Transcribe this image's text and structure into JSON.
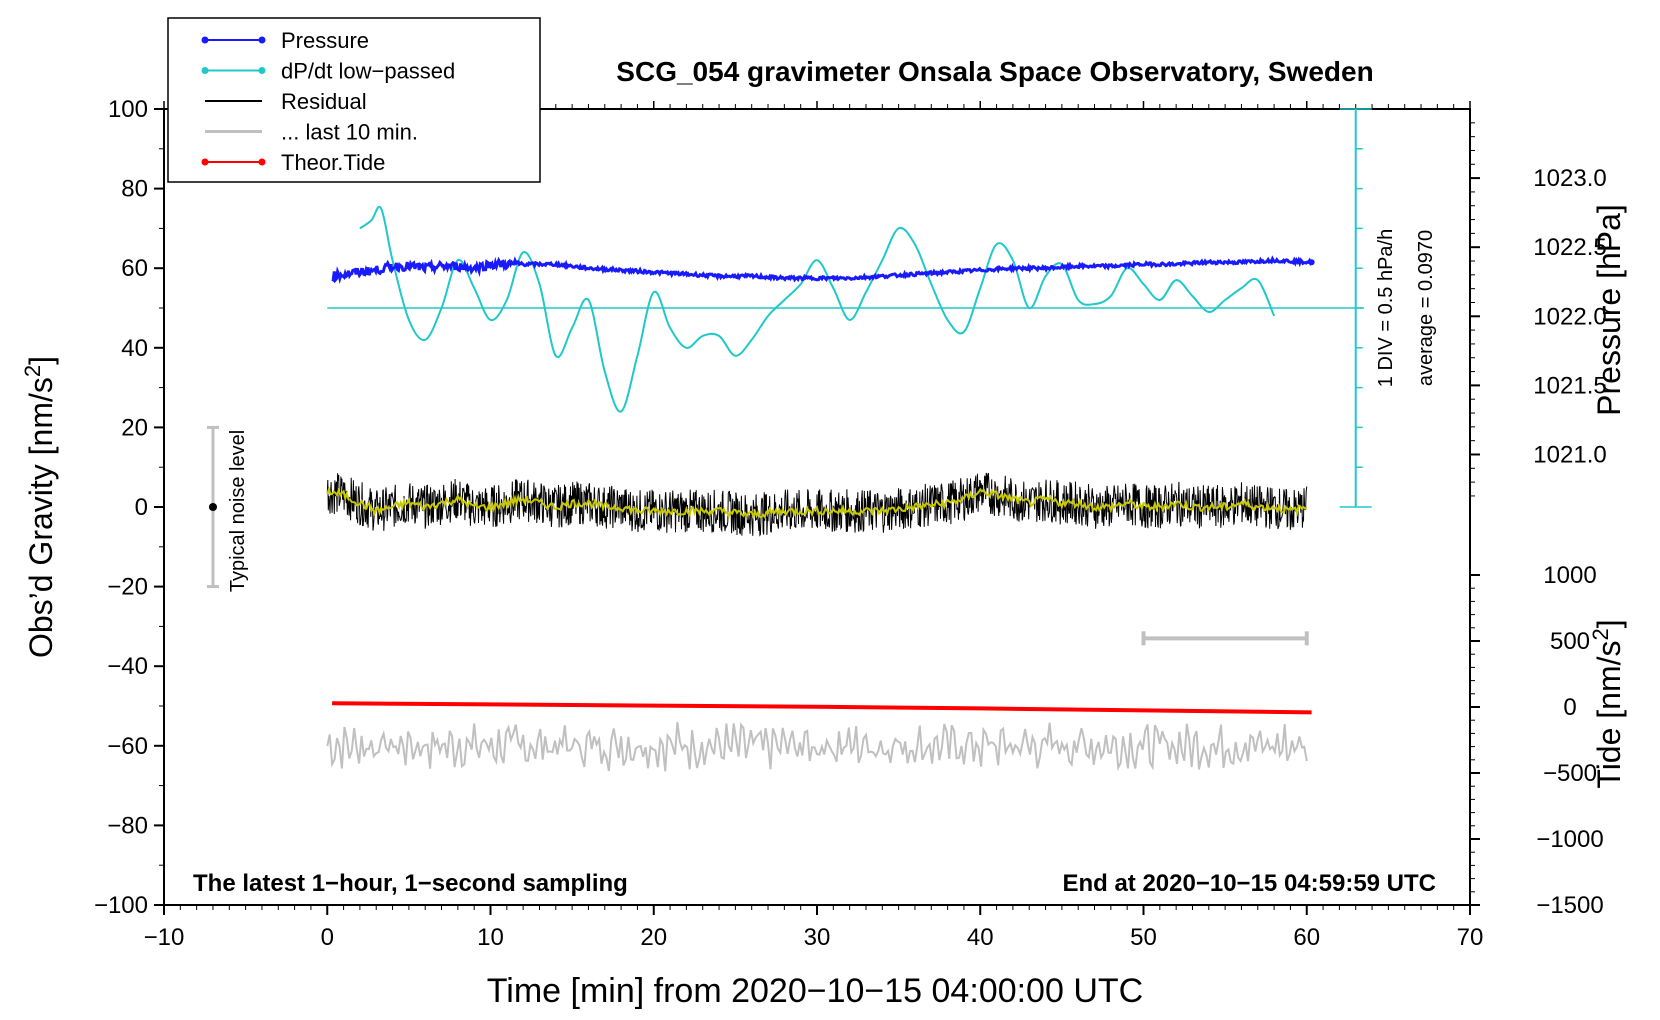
{
  "chart_data": {
    "type": "line",
    "title": "SCG_054 gravimeter Onsala Space Observatory, Sweden",
    "xlabel": "Time [min] from 2020−10−15 04:00:00 UTC",
    "ylabel_main": "Obs’d Gravity [nm/s",
    "ylabel_main_sup": "2",
    "ylabel_main_end": "]",
    "ylabel_pressure": "Pressure [hPa]",
    "ylabel_tide": "Tide [nm/s",
    "ylabel_tide_sup": "2",
    "ylabel_tide_end": "]",
    "xlim": [
      -10,
      70
    ],
    "ylim": [
      -100,
      100
    ],
    "x_ticks": [
      -10,
      0,
      10,
      20,
      30,
      40,
      50,
      60,
      70
    ],
    "x_tick_labels": [
      "−10",
      "0",
      "10",
      "20",
      "30",
      "40",
      "50",
      "60",
      "70"
    ],
    "y_ticks": [
      100,
      80,
      60,
      40,
      20,
      0,
      -20,
      -40,
      -60,
      -80,
      -100
    ],
    "y_tick_labels": [
      "100",
      "80",
      "60",
      "40",
      "20",
      "0",
      "−20",
      "−40",
      "−60",
      "−80",
      "−100"
    ],
    "pressure_axis": {
      "ticks": [
        1023.0,
        1022.5,
        1022.0,
        1021.5,
        1021.0
      ],
      "tick_labels": [
        "1023.0",
        "1022.5",
        "1022.0",
        "1021.5",
        "1021.0"
      ],
      "range": [
        1020.62,
        1023.5
      ]
    },
    "tide_axis": {
      "ticks": [
        1000,
        500,
        0,
        -500,
        -1000,
        -1500
      ],
      "tick_labels": [
        "1000",
        "500",
        "0",
        "−500",
        "−1000",
        "−1500"
      ],
      "range": [
        -1500,
        1000
      ]
    },
    "legend": {
      "position": "top-left",
      "entries": [
        {
          "label": "Pressure",
          "color": "#1a1aff",
          "marker": true
        },
        {
          "label": "dP/dt low−passed",
          "color": "#20c8c8",
          "marker": true
        },
        {
          "label": "Residual",
          "color": "#000000",
          "marker": false
        },
        {
          "label": "... last 10 min.",
          "color": "#c0c0c0",
          "marker": false
        },
        {
          "label": "Theor.Tide",
          "color": "#ff0000",
          "marker": true
        }
      ]
    },
    "annotations": {
      "noise_label": "Typical noise level",
      "noise_center": 0,
      "noise_range": [
        -20,
        20
      ],
      "noise_x": -7,
      "dpdt_scale_1": "1 DIV = 0.5 hPa/h",
      "dpdt_scale_2": "average = 0.0970",
      "dpdt_baseline": 50,
      "dpdt_scale_x": 63,
      "dpdt_scale_range": [
        0,
        100
      ],
      "ten_min_bar": [
        50,
        60
      ],
      "ten_min_bar_y": -33,
      "bottom_left": "The latest 1−hour, 1−second sampling",
      "bottom_right": "End at 2020−10−15 04:59:59 UTC"
    },
    "series": [
      {
        "name": "Pressure",
        "color": "#1a1aff",
        "x": [
          0.3,
          1,
          2,
          3,
          4,
          5,
          6,
          7,
          8,
          9,
          10,
          11,
          12,
          13,
          14,
          15,
          16,
          18,
          20,
          22,
          24,
          26,
          28,
          30,
          32,
          34,
          36,
          38,
          40,
          42,
          44,
          46,
          48,
          50,
          52,
          54,
          56,
          58,
          60.3
        ],
        "y": [
          58,
          58.5,
          59,
          59.5,
          60.5,
          60.5,
          60,
          60.5,
          60.5,
          60,
          61,
          61,
          61,
          61,
          61,
          60.5,
          60,
          59.5,
          59,
          58.5,
          58,
          58,
          57.5,
          57.5,
          57.5,
          58,
          58.5,
          59,
          59.5,
          60,
          60,
          60.5,
          60.5,
          61,
          61,
          61.5,
          61.5,
          62,
          61.5
        ]
      },
      {
        "name": "dP/dt low-passed",
        "color": "#20c8c8",
        "x": [
          2,
          2.7,
          3.3,
          4,
          5,
          6,
          7,
          8,
          9,
          10,
          11,
          12,
          13,
          14,
          15,
          16,
          17,
          18,
          19,
          20,
          21,
          22,
          23,
          24,
          25,
          26,
          27,
          28,
          29,
          30,
          31,
          32,
          33,
          34,
          35,
          36,
          37,
          38,
          39,
          40,
          41,
          42,
          43,
          44,
          45,
          46,
          47,
          48,
          49,
          50,
          51,
          52,
          53,
          54,
          55,
          56,
          57,
          58
        ],
        "y": [
          70,
          72,
          75,
          62,
          47,
          42,
          50,
          62,
          55,
          47,
          52,
          64,
          56,
          38,
          45,
          52,
          34,
          24,
          38,
          54,
          45,
          40,
          43,
          43,
          38,
          42,
          48,
          52,
          56,
          62,
          55,
          47,
          54,
          62,
          70,
          66,
          56,
          47,
          44,
          55,
          66,
          62,
          50,
          58,
          61,
          52,
          51,
          53,
          60,
          56,
          52,
          57,
          53,
          49,
          52,
          55,
          57,
          48
        ]
      },
      {
        "name": "Residual (smoothed)",
        "color": "#c8c800",
        "x": [
          0,
          1,
          2,
          3,
          4,
          5,
          6,
          7,
          8,
          9,
          10,
          11,
          12,
          13,
          14,
          15,
          16,
          17,
          18,
          19,
          20,
          22,
          24,
          26,
          28,
          30,
          32,
          34,
          36,
          38,
          39,
          40,
          41,
          42,
          43,
          44,
          45,
          46,
          47,
          48,
          49,
          50,
          51,
          52,
          53,
          54,
          55,
          56,
          57,
          58,
          59,
          60
        ],
        "y": [
          4,
          3,
          1,
          -1,
          0,
          1,
          0,
          1,
          2,
          0,
          0,
          1,
          2,
          1,
          0,
          1,
          1,
          0,
          0,
          -1,
          -1,
          -1,
          -1,
          -2,
          -1,
          -1,
          -1,
          -1,
          0,
          1,
          2,
          4,
          3,
          2,
          1,
          2,
          1,
          1,
          0,
          0,
          1,
          0,
          0,
          1,
          0,
          0,
          0,
          1,
          0,
          0,
          -1,
          0
        ]
      },
      {
        "name": "Theor.Tide",
        "color": "#ff0000",
        "x": [
          0.3,
          10,
          20,
          30,
          40,
          50,
          60.3
        ],
        "y": [
          -49.3,
          -49.6,
          -49.9,
          -50.2,
          -50.6,
          -51.1,
          -51.6
        ]
      }
    ]
  }
}
